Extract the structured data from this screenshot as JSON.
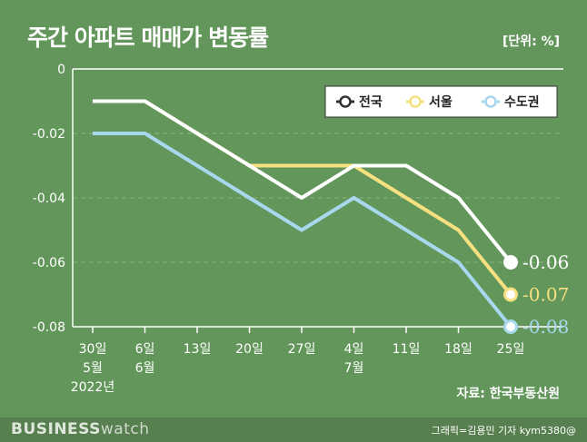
{
  "title": "주간 아파트 매매가 변동률",
  "unit": "[단위: %]",
  "source": "자료: 한국부동산원",
  "footer": {
    "logo_bold": "BUSINESS",
    "logo_light": "watch",
    "credit": "그래픽=김용민 기자 kym5380@"
  },
  "chart_data": {
    "type": "line",
    "title": "주간 아파트 매매가 변동률",
    "ylabel": "",
    "xlabel": "",
    "ylim": [
      -0.08,
      0
    ],
    "yticks": [
      "0",
      "-0.02",
      "-0.04",
      "-0.06",
      "-0.08"
    ],
    "grid": "horizontal dashed",
    "legend_position": "top-right",
    "categories": [
      [
        "30일",
        "5월",
        "2022년"
      ],
      [
        "6일",
        "6월"
      ],
      [
        "13일"
      ],
      [
        "20일"
      ],
      [
        "27일"
      ],
      [
        "4일",
        "7월"
      ],
      [
        "11일"
      ],
      [
        "18일"
      ],
      [
        "25일"
      ]
    ],
    "series": [
      {
        "name": "전국",
        "color": "#ffffff",
        "values": [
          -0.01,
          -0.01,
          -0.02,
          -0.03,
          -0.04,
          -0.03,
          -0.03,
          -0.04,
          -0.06
        ],
        "end_label": "-0.06"
      },
      {
        "name": "서울",
        "color": "#f6e07f",
        "values": [
          -0.01,
          -0.01,
          -0.02,
          -0.03,
          -0.03,
          -0.03,
          -0.04,
          -0.05,
          -0.07
        ],
        "end_label": "-0.07"
      },
      {
        "name": "수도권",
        "color": "#a8d8ee",
        "values": [
          -0.02,
          -0.02,
          -0.03,
          -0.04,
          -0.05,
          -0.04,
          -0.05,
          -0.06,
          -0.08
        ],
        "end_label": "-0.08"
      }
    ]
  }
}
